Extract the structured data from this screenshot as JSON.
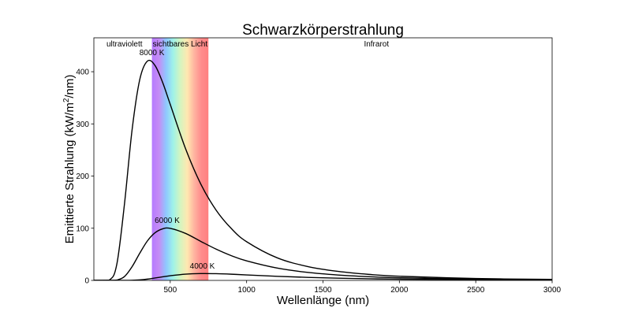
{
  "chart_data": {
    "type": "line",
    "title": "Schwarzkörperstrahlung",
    "xlabel": "Wellenlänge (nm)",
    "ylabel_parts": [
      "Emittierte Strahlung (kW/m",
      "2",
      "/nm)"
    ],
    "xlim": [
      0,
      3000
    ],
    "ylim": [
      0,
      465
    ],
    "xticks": [
      500,
      1000,
      1500,
      2000,
      2500,
      3000
    ],
    "yticks": [
      0,
      100,
      200,
      300,
      400
    ],
    "grid": false,
    "regions": [
      {
        "label": "ultraviolett",
        "x": 200
      },
      {
        "label": "sichtbares Licht",
        "x": 565,
        "range": [
          380,
          750
        ],
        "gradient": [
          "#b57bff",
          "#c58cf5",
          "#8fc8ff",
          "#9ff2e8",
          "#d4f5c0",
          "#ffe8b0",
          "#ffb3a0",
          "#ff8c8c",
          "#ff8080"
        ]
      },
      {
        "label": "Infrarot",
        "x": 1850
      }
    ],
    "x": [
      100,
      150,
      200,
      250,
      300,
      350,
      400,
      450,
      500,
      600,
      700,
      800,
      900,
      1000,
      1200,
      1400,
      1600,
      1800,
      2000,
      2500,
      3000
    ],
    "series": [
      {
        "name": "8000 K",
        "label_at": [
          380,
          432
        ],
        "values": [
          0.6,
          30.6,
          145.4,
          288.1,
          384.4,
          420.3,
          412.1,
          379.6,
          337.4,
          252.7,
          184.7,
          134.8,
          99.4,
          74.2,
          43.3,
          26.6,
          17.2,
          11.5,
          8.0,
          3.6,
          1.9
        ]
      },
      {
        "name": "6000 K",
        "label_at": [
          480,
          110
        ],
        "values": [
          0,
          0.56,
          7.26,
          26.2,
          51.9,
          75.5,
          91.2,
          98.8,
          99.8,
          90.1,
          74.8,
          60.0,
          47.4,
          37.4,
          23.6,
          15.3,
          10.3,
          7.1,
          5.0,
          2.4,
          1.3
        ]
      },
      {
        "name": "4000 K",
        "label_at": [
          710,
          23
        ],
        "values": [
          0,
          0,
          0.02,
          0.22,
          0.96,
          2.45,
          4.54,
          6.84,
          9.0,
          12.0,
          13.1,
          12.9,
          11.9,
          10.5,
          7.9,
          5.8,
          4.2,
          3.1,
          2.3,
          1.2,
          0.66
        ]
      }
    ],
    "line_color": "#000000"
  }
}
